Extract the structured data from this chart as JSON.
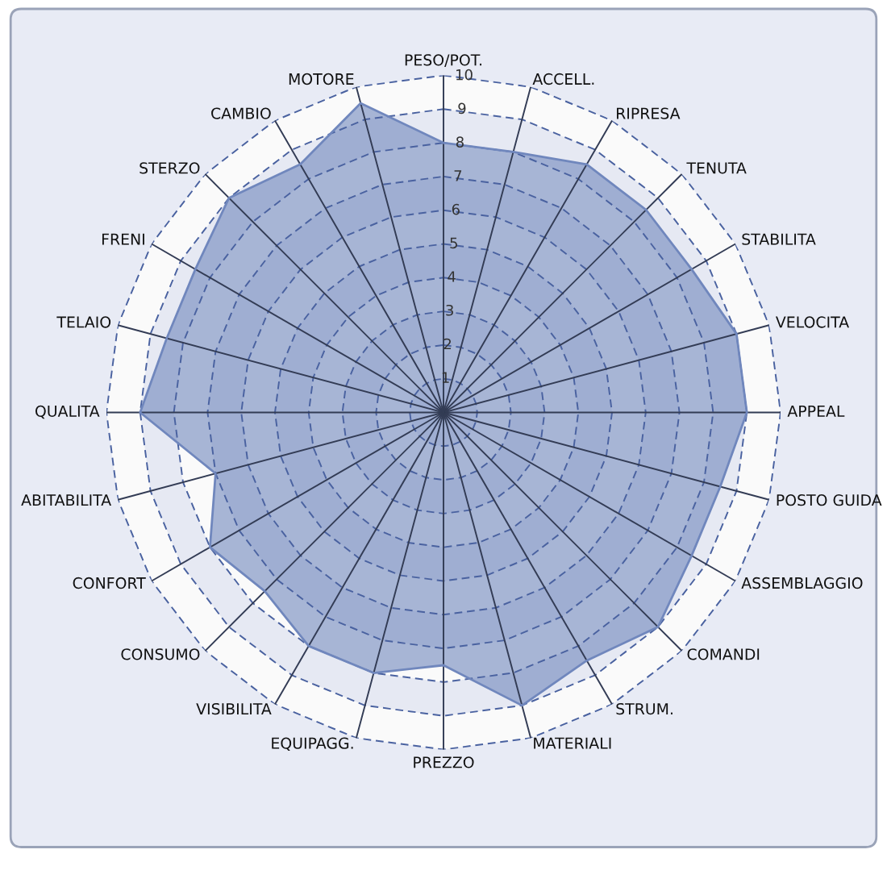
{
  "chart_data": {
    "type": "radar",
    "categories": [
      "PESO/POT.",
      "ACCELL.",
      "RIPRESA",
      "TENUTA",
      "STABILITA",
      "VELOCITA",
      "APPEAL",
      "POSTO GUIDA",
      "ASSEMBLAGGIO",
      "COMANDI",
      "STRUM.",
      "MATERIALI",
      "PREZZO",
      "EQUIPAGG.",
      "VISIBILITA",
      "CONSUMO",
      "CONFORT",
      "ABITABILITA",
      "QUALITA",
      "TELAIO",
      "FRENI",
      "STERZO",
      "CAMBIO",
      "MOTORE"
    ],
    "series": [
      {
        "color": "#7087bd",
        "values": [
          8,
          8,
          8.5,
          8.5,
          8.5,
          9,
          9,
          8.5,
          8.5,
          9,
          8.5,
          9,
          7.5,
          8,
          8,
          7.5,
          8,
          7,
          9,
          8.5,
          8.5,
          9,
          8.5,
          9.5
        ]
      }
    ],
    "ylim": [
      0,
      10
    ],
    "yticks": [
      1,
      2,
      3,
      4,
      5,
      6,
      7,
      8,
      9,
      10
    ],
    "grid": true,
    "marker": "none",
    "line_style": "solid"
  }
}
